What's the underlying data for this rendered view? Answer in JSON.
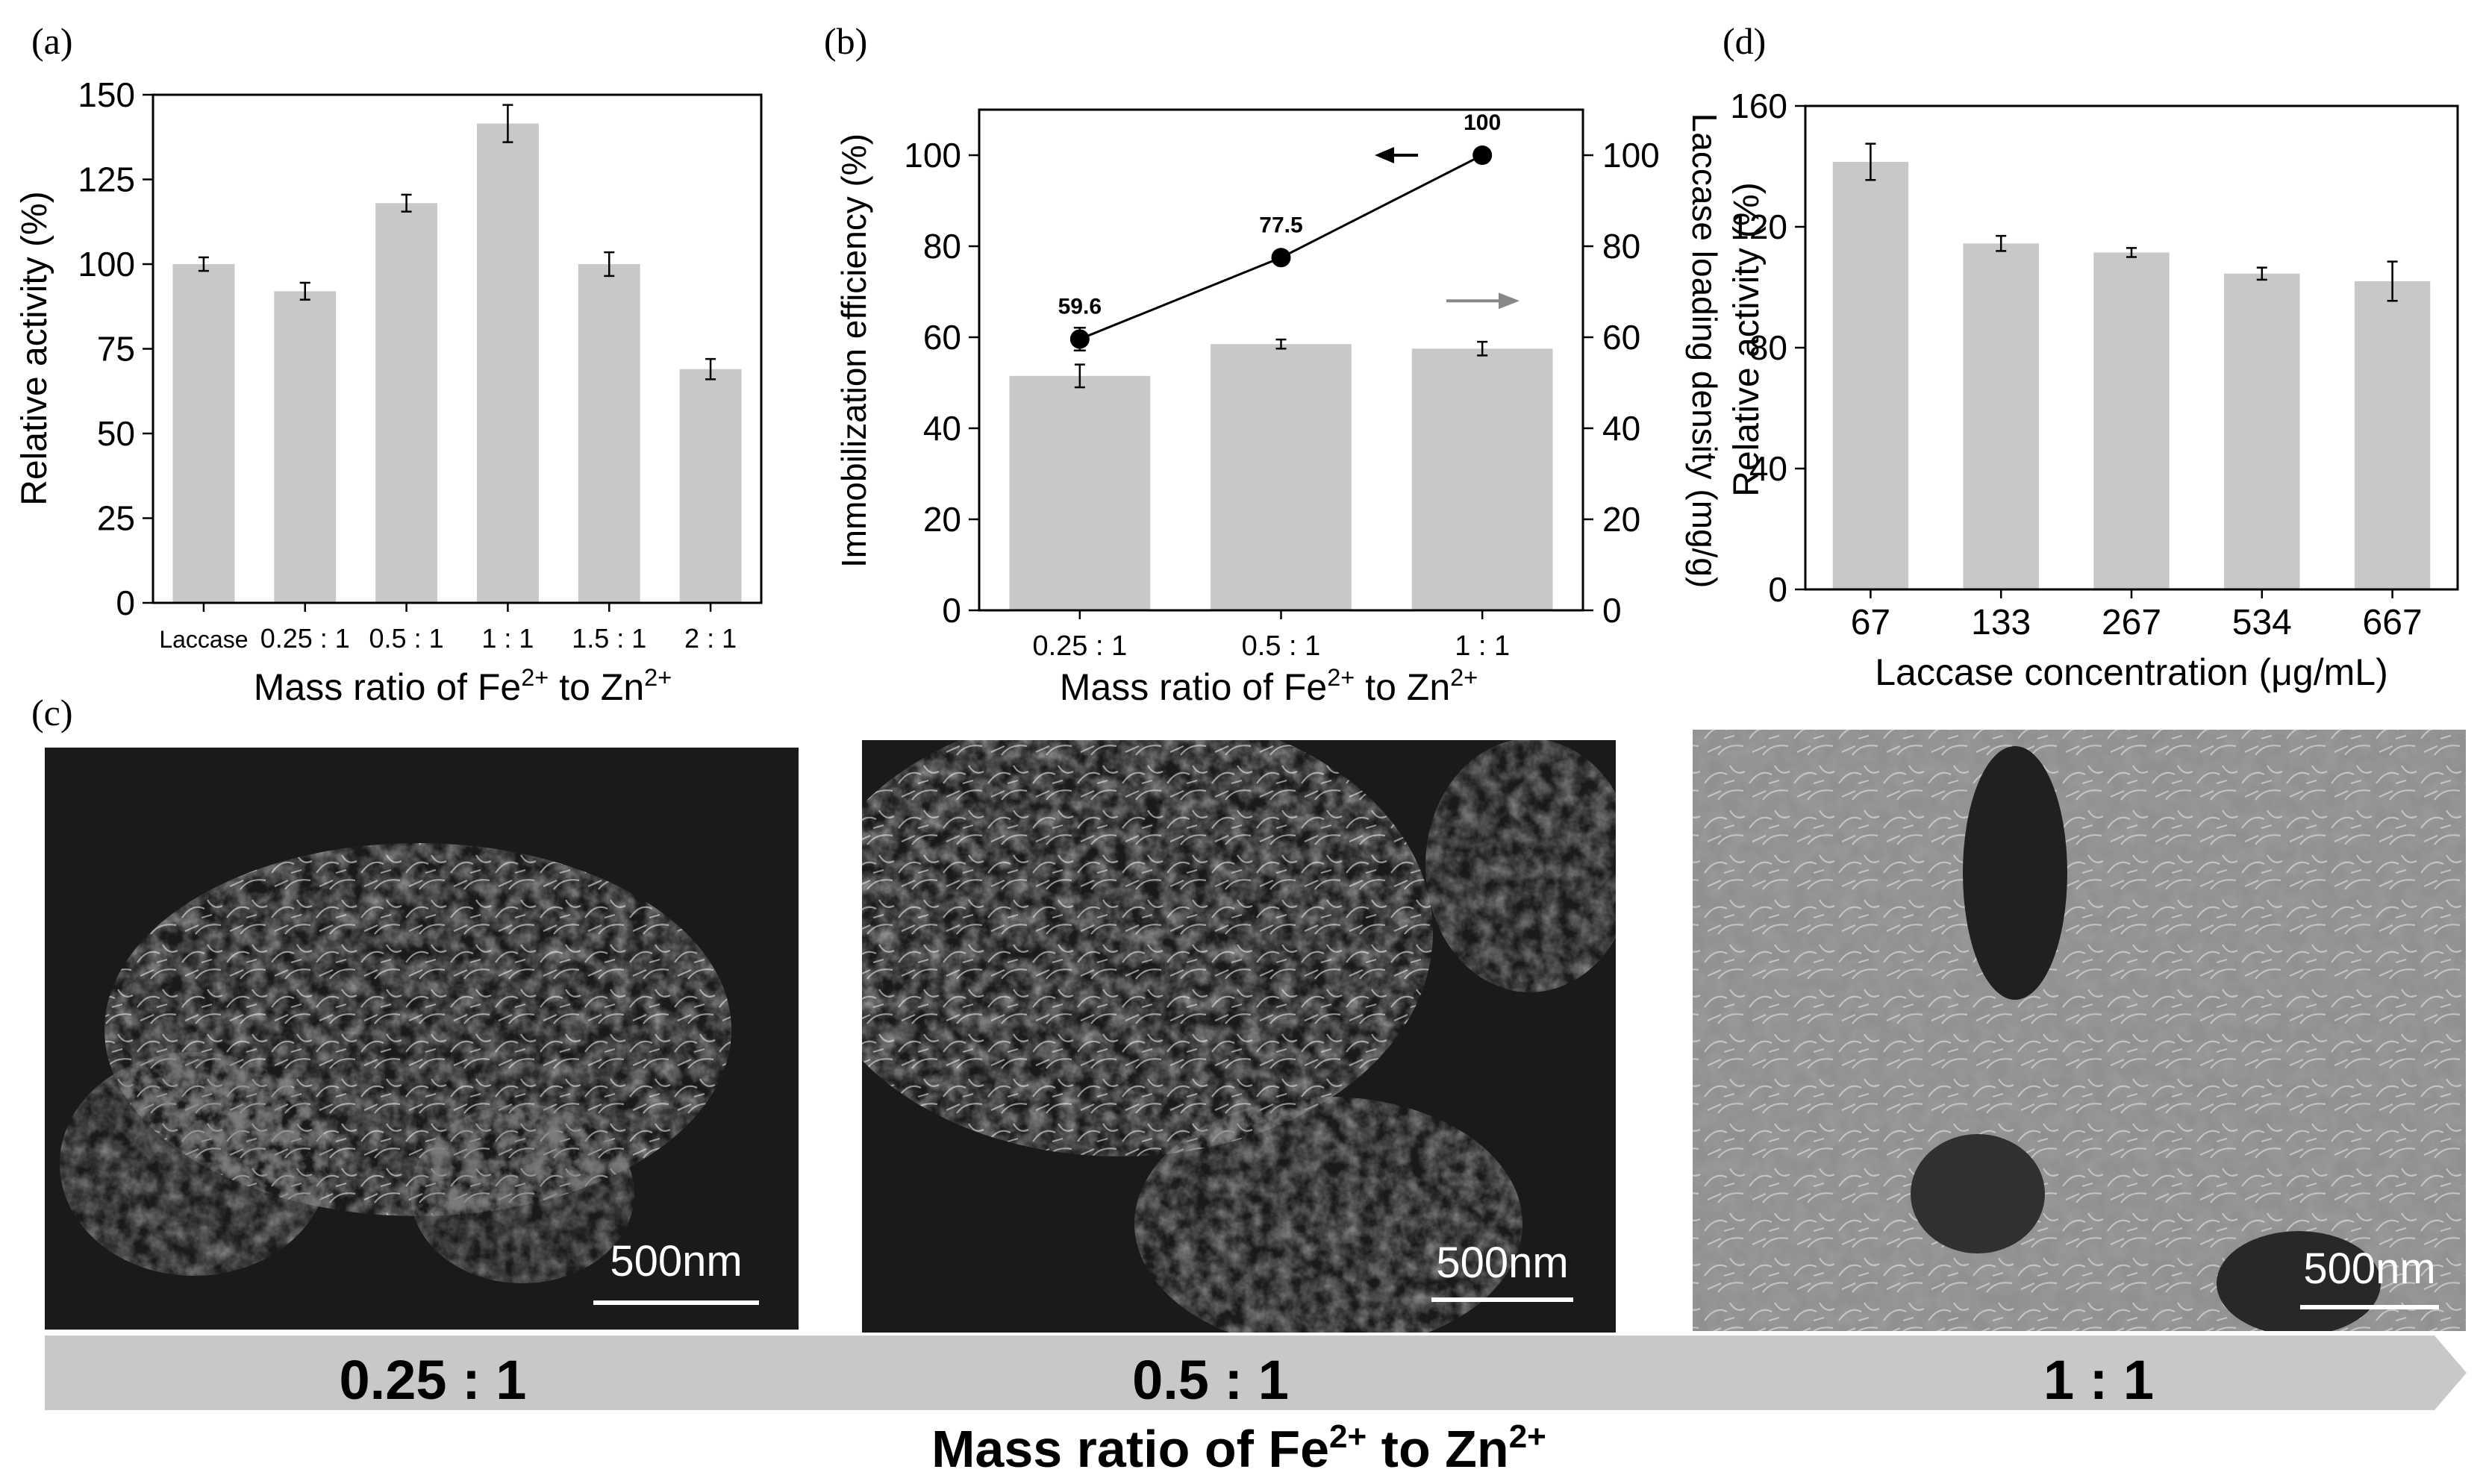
{
  "chart_data": [
    {
      "panel_label": "(a)",
      "type": "bar",
      "categories": [
        "Laccase",
        "0.25 : 1",
        "0.5 : 1",
        "1 : 1",
        "1.5 : 1",
        "2 : 1"
      ],
      "values": [
        100,
        92,
        118,
        141.5,
        100,
        69
      ],
      "errors": [
        2,
        2.5,
        2.5,
        5.5,
        3.5,
        3
      ],
      "ylabel": "Relative activity (%)",
      "xlabel_parts": [
        "Mass ratio of Fe",
        "2+",
        " to Zn",
        "2+"
      ],
      "ylim": [
        0,
        150
      ],
      "yticks": [
        0,
        25,
        50,
        75,
        100,
        125,
        150
      ],
      "bar_color": "#c8c8c8"
    },
    {
      "panel_label": "(b)",
      "type": "bar+line",
      "categories": [
        "0.25 : 1",
        "0.5 : 1",
        "1 : 1"
      ],
      "bar_values": [
        51.5,
        58.5,
        57.5
      ],
      "bar_errors": [
        2.5,
        1,
        1.5
      ],
      "line_values": [
        59.6,
        77.5,
        100
      ],
      "line_errors": [
        2.5,
        0,
        0
      ],
      "line_labels": [
        "59.6",
        "77.5",
        "100"
      ],
      "ylabel_left": "Immobilization efficiency (%)",
      "ylabel_right": "Laccase loading density (mg/g)",
      "xlabel_parts": [
        "Mass ratio of Fe",
        "2+",
        " to Zn",
        "2+"
      ],
      "ylim": [
        0,
        110
      ],
      "yticks": [
        0,
        20,
        40,
        60,
        80,
        100
      ],
      "bar_color": "#c8c8c8",
      "line_color": "#000000",
      "right_arrow_color": "#888888"
    },
    {
      "panel_label": "(d)",
      "type": "bar",
      "categories": [
        "67",
        "133",
        "267",
        "534",
        "667"
      ],
      "values": [
        141.5,
        114.5,
        111.5,
        104.5,
        102
      ],
      "errors": [
        6,
        2.5,
        1.5,
        2,
        6.5
      ],
      "ylabel": "Relative activity (%)",
      "xlabel": "Laccase concentration (μg/mL)",
      "ylim": [
        0,
        160
      ],
      "yticks": [
        0,
        40,
        80,
        120,
        160
      ],
      "bar_color": "#c8c8c8"
    }
  ],
  "panel_c": {
    "label": "(c)",
    "images": [
      {
        "name": "sem-0.25",
        "scale_bar": "500nm",
        "ratio": "0.25 : 1"
      },
      {
        "name": "sem-0.5",
        "scale_bar": "500nm",
        "ratio": "0.5 : 1"
      },
      {
        "name": "sem-1",
        "scale_bar": "500nm",
        "ratio": "1 : 1"
      }
    ],
    "arrow_color": "#c8c8c8",
    "caption_parts": [
      "Mass ratio of Fe",
      "2+",
      " to Zn",
      "2+"
    ]
  }
}
